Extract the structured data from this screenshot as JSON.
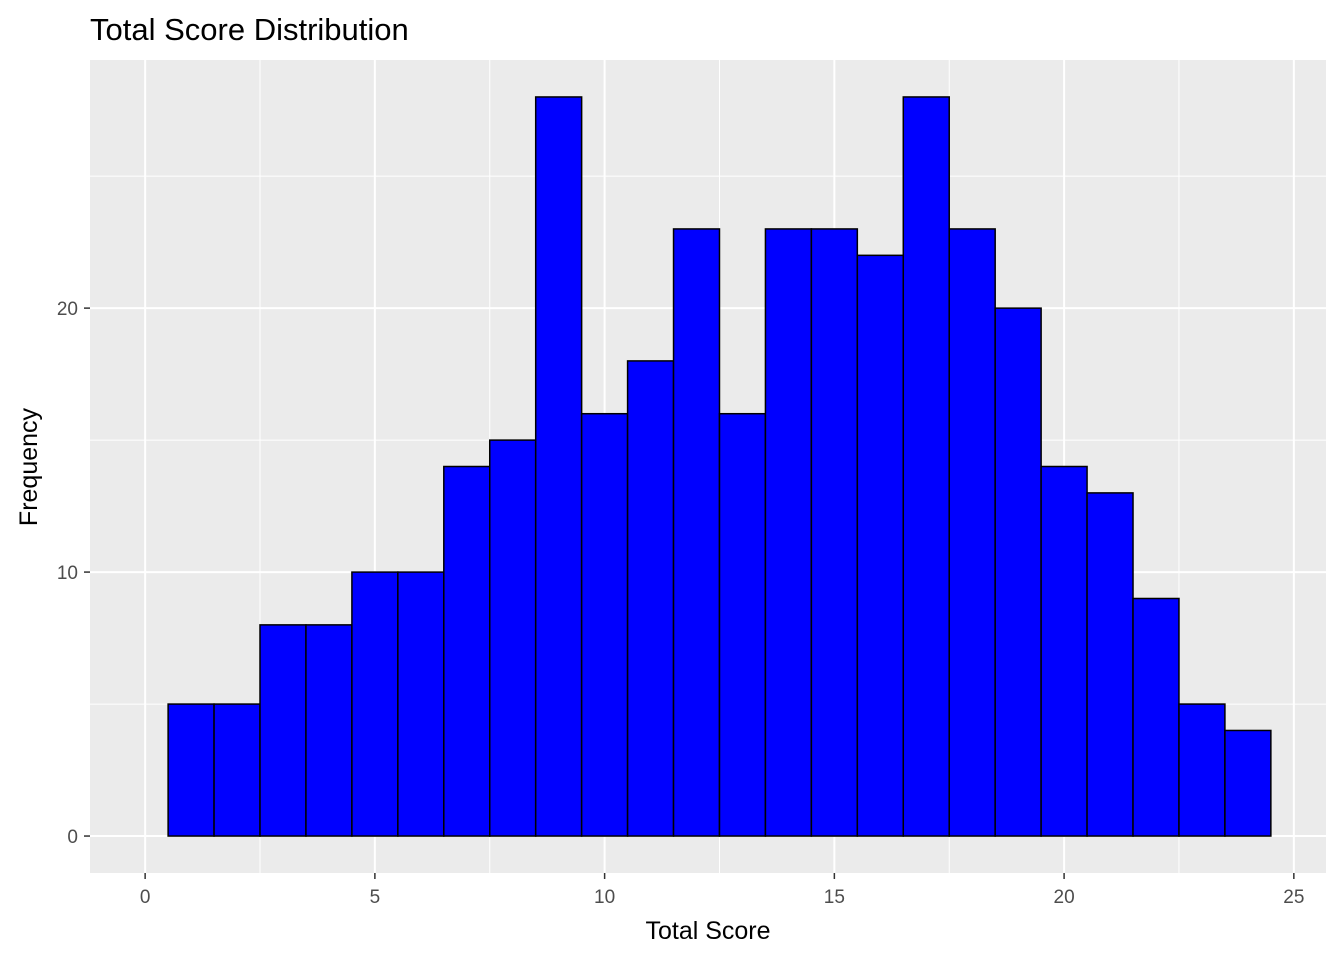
{
  "chart_data": {
    "type": "bar",
    "title": "Total Score Distribution",
    "xlabel": "Total Score",
    "ylabel": "Frequency",
    "bins": [
      {
        "x0": 0.5,
        "x1": 1.5,
        "count": 5
      },
      {
        "x0": 1.5,
        "x1": 2.5,
        "count": 5
      },
      {
        "x0": 2.5,
        "x1": 3.5,
        "count": 8
      },
      {
        "x0": 3.5,
        "x1": 4.5,
        "count": 8
      },
      {
        "x0": 4.5,
        "x1": 5.5,
        "count": 10
      },
      {
        "x0": 5.5,
        "x1": 6.5,
        "count": 10
      },
      {
        "x0": 6.5,
        "x1": 7.5,
        "count": 14
      },
      {
        "x0": 7.5,
        "x1": 8.5,
        "count": 15
      },
      {
        "x0": 8.5,
        "x1": 9.5,
        "count": 28
      },
      {
        "x0": 9.5,
        "x1": 10.5,
        "count": 16
      },
      {
        "x0": 10.5,
        "x1": 11.5,
        "count": 18
      },
      {
        "x0": 11.5,
        "x1": 12.5,
        "count": 23
      },
      {
        "x0": 12.5,
        "x1": 13.5,
        "count": 16
      },
      {
        "x0": 13.5,
        "x1": 14.5,
        "count": 23
      },
      {
        "x0": 14.5,
        "x1": 15.5,
        "count": 23
      },
      {
        "x0": 15.5,
        "x1": 16.5,
        "count": 22
      },
      {
        "x0": 16.5,
        "x1": 17.5,
        "count": 28
      },
      {
        "x0": 17.5,
        "x1": 18.5,
        "count": 23
      },
      {
        "x0": 18.5,
        "x1": 19.5,
        "count": 20
      },
      {
        "x0": 19.5,
        "x1": 20.5,
        "count": 14
      },
      {
        "x0": 20.5,
        "x1": 21.5,
        "count": 13
      },
      {
        "x0": 21.5,
        "x1": 22.5,
        "count": 9
      },
      {
        "x0": 22.5,
        "x1": 23.5,
        "count": 5
      },
      {
        "x0": 23.5,
        "x1": 24.5,
        "count": 4
      }
    ],
    "xlim": [
      -1.2,
      25.7
    ],
    "ylim": [
      -1.4,
      29.4
    ],
    "x_ticks": [
      0,
      5,
      10,
      15,
      20,
      25
    ],
    "y_ticks": [
      0,
      10,
      20
    ],
    "grid": true,
    "fill_color": "#0000ff",
    "edge_color": "#000000",
    "panel_color": "#ebebeb",
    "grid_color": "#ffffff"
  }
}
